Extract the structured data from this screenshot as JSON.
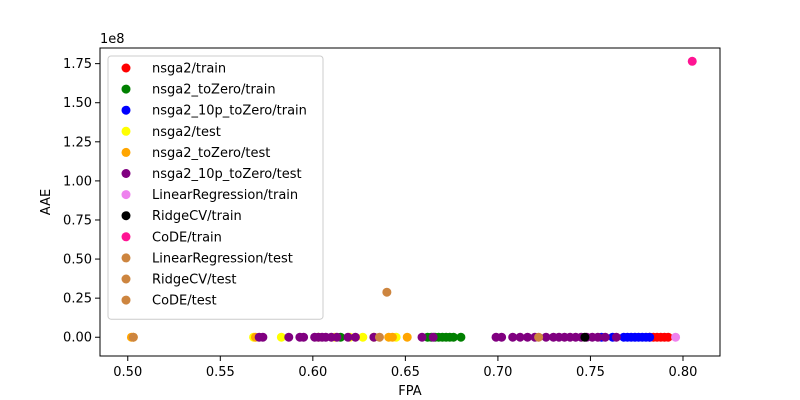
{
  "chart_data": {
    "type": "scatter",
    "title": "",
    "xlabel": "FPA",
    "ylabel": "AAE",
    "y_offset_label": "1e8",
    "xlim": [
      0.485,
      0.82
    ],
    "ylim": [
      -0.12,
      1.85
    ],
    "xticks": [
      0.5,
      0.55,
      0.6,
      0.65,
      0.7,
      0.75,
      0.8
    ],
    "xtick_labels": [
      "0.50",
      "0.55",
      "0.60",
      "0.65",
      "0.70",
      "0.75",
      "0.80"
    ],
    "yticks": [
      0.0,
      0.25,
      0.5,
      0.75,
      1.0,
      1.25,
      1.5,
      1.75
    ],
    "ytick_labels": [
      "0.00",
      "0.25",
      "0.50",
      "0.75",
      "1.00",
      "1.25",
      "1.50",
      "1.75"
    ],
    "grid": false,
    "legend_position": "upper-left",
    "series": [
      {
        "name": "nsga2/train",
        "color": "#ff0000",
        "points": [
          [
            0.782,
            0
          ],
          [
            0.784,
            0
          ],
          [
            0.786,
            0
          ],
          [
            0.788,
            0
          ],
          [
            0.79,
            0
          ],
          [
            0.792,
            0
          ]
        ]
      },
      {
        "name": "nsga2_toZero/train",
        "color": "#008000",
        "points": [
          [
            0.615,
            0
          ],
          [
            0.662,
            0
          ],
          [
            0.664,
            0
          ],
          [
            0.666,
            0
          ],
          [
            0.668,
            0
          ],
          [
            0.67,
            0
          ],
          [
            0.672,
            0
          ],
          [
            0.674,
            0
          ],
          [
            0.676,
            0
          ],
          [
            0.68,
            0
          ]
        ]
      },
      {
        "name": "nsga2_10p_toZero/train",
        "color": "#0000ff",
        "points": [
          [
            0.756,
            0
          ],
          [
            0.762,
            0
          ],
          [
            0.768,
            0
          ],
          [
            0.77,
            0
          ],
          [
            0.772,
            0
          ],
          [
            0.774,
            0
          ],
          [
            0.776,
            0
          ],
          [
            0.778,
            0
          ],
          [
            0.78,
            0
          ],
          [
            0.782,
            0
          ]
        ]
      },
      {
        "name": "nsga2/test",
        "color": "#ffff00",
        "points": [
          [
            0.568,
            0
          ],
          [
            0.583,
            0
          ],
          [
            0.603,
            0
          ],
          [
            0.612,
            0
          ],
          [
            0.62,
            0
          ],
          [
            0.627,
            0
          ],
          [
            0.633,
            0
          ],
          [
            0.645,
            0
          ]
        ]
      },
      {
        "name": "nsga2_toZero/test",
        "color": "#ffa500",
        "points": [
          [
            0.502,
            0
          ],
          [
            0.503,
            0
          ],
          [
            0.569,
            0
          ],
          [
            0.641,
            0
          ],
          [
            0.643,
            0
          ],
          [
            0.651,
            0
          ]
        ]
      },
      {
        "name": "nsga2_10p_toZero/test",
        "color": "#800080",
        "points": [
          [
            0.571,
            0
          ],
          [
            0.573,
            0
          ],
          [
            0.587,
            0
          ],
          [
            0.593,
            0
          ],
          [
            0.595,
            0
          ],
          [
            0.601,
            0
          ],
          [
            0.603,
            0
          ],
          [
            0.605,
            0
          ],
          [
            0.607,
            0
          ],
          [
            0.61,
            0
          ],
          [
            0.613,
            0
          ],
          [
            0.619,
            0
          ],
          [
            0.623,
            0
          ],
          [
            0.633,
            0
          ],
          [
            0.659,
            0
          ],
          [
            0.665,
            0
          ],
          [
            0.699,
            0
          ],
          [
            0.702,
            0
          ],
          [
            0.708,
            0
          ],
          [
            0.712,
            0
          ],
          [
            0.716,
            0
          ],
          [
            0.72,
            0
          ],
          [
            0.726,
            0
          ],
          [
            0.73,
            0
          ],
          [
            0.733,
            0
          ],
          [
            0.736,
            0
          ],
          [
            0.739,
            0
          ],
          [
            0.742,
            0
          ],
          [
            0.745,
            0
          ],
          [
            0.748,
            0
          ],
          [
            0.751,
            0
          ],
          [
            0.754,
            0
          ],
          [
            0.758,
            0
          ],
          [
            0.764,
            0
          ]
        ]
      },
      {
        "name": "LinearRegression/train",
        "color": "#ee82ee",
        "points": [
          [
            0.796,
            0
          ]
        ]
      },
      {
        "name": "RidgeCV/train",
        "color": "#000000",
        "points": [
          [
            0.747,
            0
          ]
        ]
      },
      {
        "name": "CoDE/train",
        "color": "#ff1493",
        "points": [
          [
            0.805,
            1.765
          ]
        ]
      },
      {
        "name": "LinearRegression/test",
        "color": "#cd853f",
        "points": [
          [
            0.722,
            0
          ]
        ]
      },
      {
        "name": "RidgeCV/test",
        "color": "#cd853f",
        "points": [
          [
            0.64,
            0.288
          ]
        ]
      },
      {
        "name": "CoDE/test",
        "color": "#cd853f",
        "points": [
          [
            0.503,
            0
          ],
          [
            0.636,
            0
          ]
        ]
      }
    ]
  }
}
